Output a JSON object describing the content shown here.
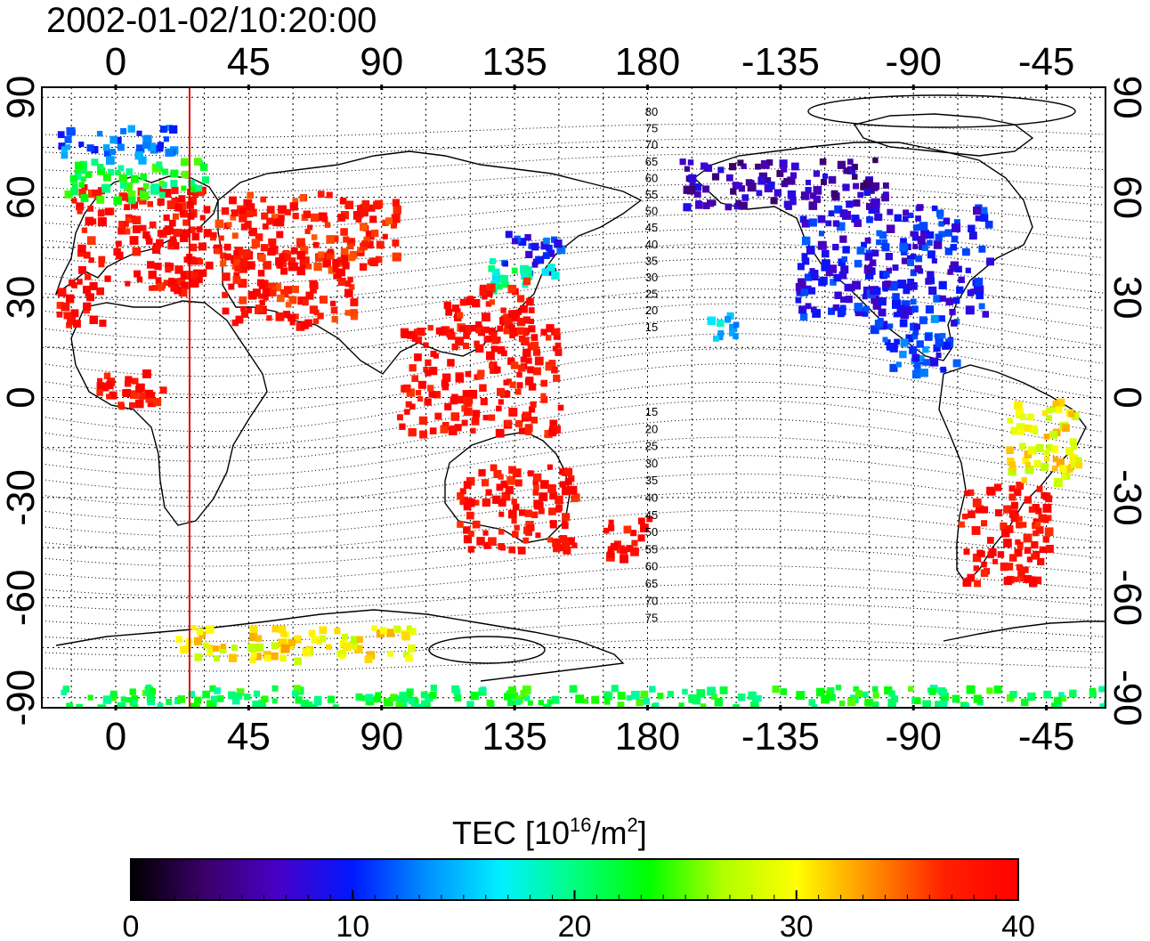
{
  "map": {
    "timestamp": "2002-01-02/10:20:00",
    "lon_ticks_top": [
      "0",
      "45",
      "90",
      "135",
      "180",
      "-135",
      "-90",
      "-45"
    ],
    "lon_ticks_bottom": [
      "0",
      "45",
      "90",
      "135",
      "180",
      "-135",
      "-90",
      "-45"
    ],
    "lon_tick_values": [
      0,
      45,
      90,
      135,
      180,
      225,
      270,
      315
    ],
    "lat_ticks_left": [
      "90",
      "60",
      "30",
      "0",
      "-30",
      "-60",
      "-90"
    ],
    "lat_ticks_right": [
      "90",
      "60",
      "30",
      "0",
      "-30",
      "-60",
      "-90"
    ],
    "lat_tick_values": [
      90,
      60,
      30,
      0,
      -30,
      -60,
      -90
    ],
    "lon_range": [
      -25,
      335
    ],
    "lat_range": [
      -93,
      93
    ],
    "grid": true,
    "terminator_lon": 25,
    "terminator_color": "#dd0000",
    "mag_labels_north": [
      "80",
      "75",
      "70",
      "65",
      "60",
      "55",
      "50",
      "45",
      "40",
      "35",
      "30",
      "25",
      "20",
      "15"
    ],
    "mag_labels_south": [
      "15",
      "20",
      "25",
      "30",
      "35",
      "40",
      "45",
      "50",
      "55",
      "60",
      "65",
      "70",
      "75"
    ],
    "tec_patches": [
      {
        "name": "europe",
        "lat": [
          32,
          64
        ],
        "lon": [
          -15,
          30
        ],
        "value": 39
      },
      {
        "name": "europe-north",
        "lat": [
          60,
          72
        ],
        "lon": [
          -18,
          30
        ],
        "value": 22
      },
      {
        "name": "scandinavia-top",
        "lat": [
          72,
          82
        ],
        "lon": [
          -20,
          20
        ],
        "value": 12
      },
      {
        "name": "iberia",
        "lat": [
          22,
          36
        ],
        "lon": [
          -20,
          -5
        ],
        "value": 39
      },
      {
        "name": "russia",
        "lat": [
          40,
          62
        ],
        "lon": [
          30,
          95
        ],
        "value": 38
      },
      {
        "name": "central-asia",
        "lat": [
          22,
          45
        ],
        "lon": [
          35,
          80
        ],
        "value": 38
      },
      {
        "name": "japan-north",
        "lat": [
          38,
          50
        ],
        "lon": [
          130,
          150
        ],
        "value": 10
      },
      {
        "name": "japan-mid",
        "lat": [
          33,
          42
        ],
        "lon": [
          125,
          148
        ],
        "value": 19
      },
      {
        "name": "china-east",
        "lat": [
          20,
          36
        ],
        "lon": [
          110,
          140
        ],
        "value": 39
      },
      {
        "name": "se-asia",
        "lat": [
          -10,
          22
        ],
        "lon": [
          95,
          150
        ],
        "value": 39
      },
      {
        "name": "australia",
        "lat": [
          -45,
          -20
        ],
        "lon": [
          115,
          155
        ],
        "value": 39
      },
      {
        "name": "new-zealand",
        "lat": [
          -48,
          -35
        ],
        "lon": [
          165,
          180
        ],
        "value": 39
      },
      {
        "name": "north-america",
        "lat": [
          25,
          58
        ],
        "lon": [
          230,
          295
        ],
        "value": 9
      },
      {
        "name": "central-america",
        "lat": [
          8,
          25
        ],
        "lon": [
          255,
          285
        ],
        "value": 11
      },
      {
        "name": "alaska-canada",
        "lat": [
          58,
          72
        ],
        "lon": [
          190,
          260
        ],
        "value": 6
      },
      {
        "name": "south-america",
        "lat": [
          -55,
          -25
        ],
        "lon": [
          285,
          315
        ],
        "value": 39
      },
      {
        "name": "brazil-north",
        "lat": [
          -25,
          0
        ],
        "lon": [
          300,
          325
        ],
        "value": 30
      },
      {
        "name": "hawaii",
        "lat": [
          18,
          26
        ],
        "lon": [
          200,
          210
        ],
        "value": 15
      },
      {
        "name": "africa-west",
        "lat": [
          -2,
          10
        ],
        "lon": [
          -10,
          15
        ],
        "value": 39
      },
      {
        "name": "antarctic-band",
        "lat": [
          -92,
          -86
        ],
        "lon": [
          -20,
          335
        ],
        "value": 22
      },
      {
        "name": "antarctic-coast",
        "lat": [
          -78,
          -68
        ],
        "lon": [
          20,
          100
        ],
        "value": 30
      }
    ]
  },
  "colorbar": {
    "title_main": "TEC  [10",
    "title_sup1": "16",
    "title_mid": "/m",
    "title_sup2": "2",
    "title_end": "]",
    "min": 0,
    "max": 40,
    "tick_labels": [
      "0",
      "10",
      "20",
      "30",
      "40"
    ],
    "tick_values": [
      0,
      10,
      20,
      30,
      40
    ],
    "colors": [
      "#000000",
      "#3a0068",
      "#4800c8",
      "#0018ff",
      "#0090ff",
      "#00f0ff",
      "#00ff80",
      "#00ff00",
      "#b0ff00",
      "#ffff00",
      "#ff9000",
      "#ff2000",
      "#ff0000"
    ]
  }
}
